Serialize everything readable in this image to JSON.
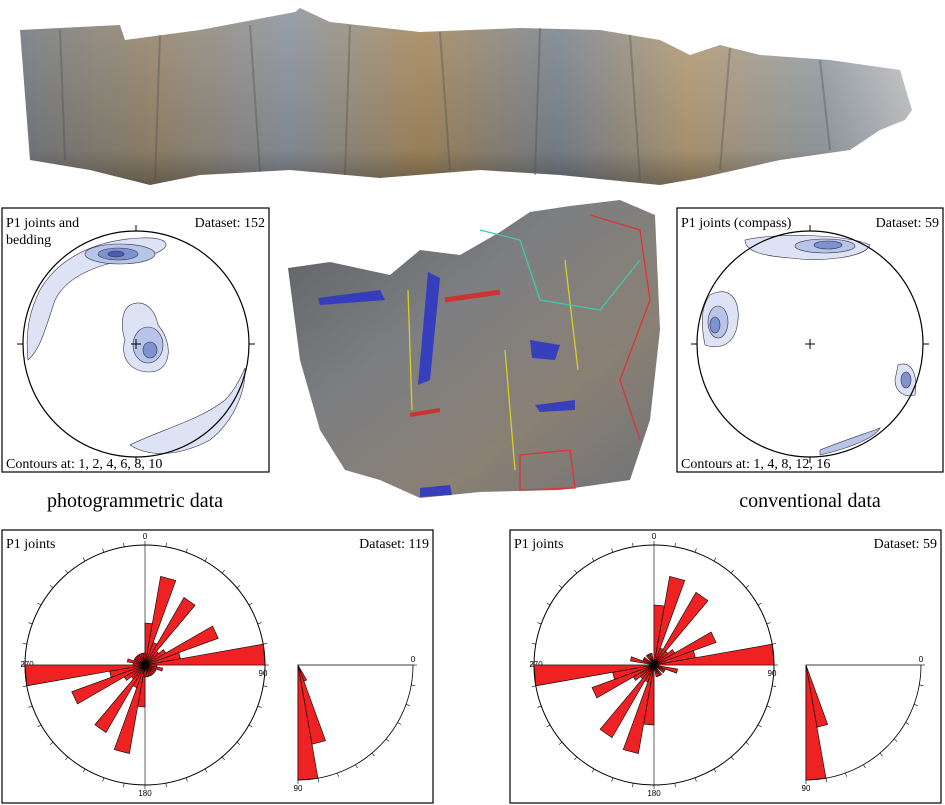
{
  "panels": {
    "stereonet_left": {
      "title_lines": [
        "P1 joints and",
        "bedding"
      ],
      "dataset": "Dataset: 152",
      "contours": "Contours at: 1, 2, 4, 6, 8, 10"
    },
    "stereonet_right": {
      "title_lines": [
        "P1 joints (compass)"
      ],
      "dataset": "Dataset: 59",
      "contours": "Contours at: 1, 4, 8, 12, 16"
    },
    "caption_left": "photogrammetric data",
    "caption_right": "conventional data",
    "rose_left": {
      "title": "P1 joints",
      "dataset": "Dataset: 119",
      "labels": {
        "north": "0",
        "east": "90",
        "south": "180",
        "west": "270"
      },
      "dip_labels": {
        "start": "0",
        "end": "90"
      },
      "bin_width": 10,
      "strike_petals": [
        0.35,
        0.75,
        0.2,
        0.65,
        0.15,
        0.2,
        0.65,
        0.3,
        1.0,
        0.1,
        0.15,
        0.1,
        0.1,
        0.1,
        0.1,
        0.1,
        0.1,
        0.1
      ],
      "dip_petals": [
        0,
        0,
        0,
        0,
        0,
        0,
        0.15,
        0.7,
        1.0
      ]
    },
    "rose_right": {
      "title": "P1 joints",
      "dataset": "Dataset: 59",
      "labels": {
        "north": "0",
        "east": "90",
        "south": "180",
        "west": "270"
      },
      "dip_labels": {
        "start": "0",
        "end": "90"
      },
      "bin_width": 10,
      "strike_petals": [
        0.5,
        0.75,
        0.15,
        0.7,
        0.15,
        0.2,
        0.55,
        0.35,
        1.0,
        0.0,
        0.2,
        0.1,
        0.1,
        0.0,
        0.1,
        0.1,
        0.1,
        0.0
      ],
      "dip_petals": [
        0,
        0,
        0,
        0,
        0,
        0,
        0,
        0.55,
        1.0
      ]
    }
  }
}
